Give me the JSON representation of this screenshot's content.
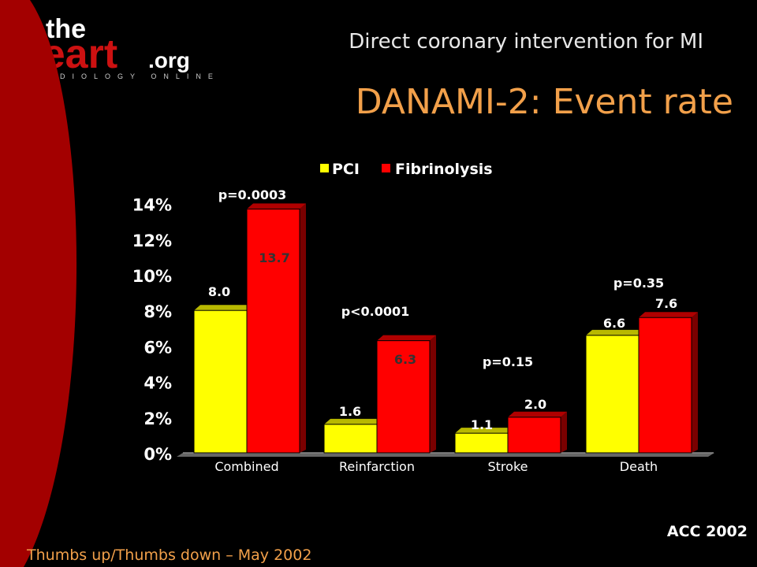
{
  "slide": {
    "subtitle": "Direct coronary intervention for MI",
    "title": "DANAMI-2: Event rate",
    "footer_left": "Thumbs up/Thumbs down – May 2002",
    "footer_right": "ACC 2002",
    "logo_text": "theheart.org CARDIOLOGY ONLINE"
  },
  "colors": {
    "pci": "#ffff00",
    "fibrinolysis": "#ff0000",
    "title": "#f2a04a",
    "background": "#000000"
  },
  "chart_data": {
    "type": "bar",
    "categories": [
      "Combined",
      "Reinfarction",
      "Stroke",
      "Death"
    ],
    "series": [
      {
        "name": "PCI",
        "values": [
          8.0,
          1.6,
          1.1,
          6.6
        ],
        "labels": [
          "8.0",
          "1.6",
          "1.1",
          "6.6"
        ]
      },
      {
        "name": "Fibrinolysis",
        "values": [
          13.7,
          6.3,
          2.0,
          7.6
        ],
        "labels": [
          "13.7",
          "6.3",
          "2.0",
          "7.6"
        ]
      }
    ],
    "annotations": [
      "p=0.0003",
      "p<0.0001",
      "p=0.15",
      "p=0.35"
    ],
    "ylim": [
      0,
      14
    ],
    "yticks": [
      0,
      2,
      4,
      6,
      8,
      10,
      12,
      14
    ],
    "ytick_labels": [
      "0%",
      "2%",
      "4%",
      "6%",
      "8%",
      "10%",
      "12%",
      "14%"
    ],
    "legend_position": "top",
    "grid": false
  }
}
